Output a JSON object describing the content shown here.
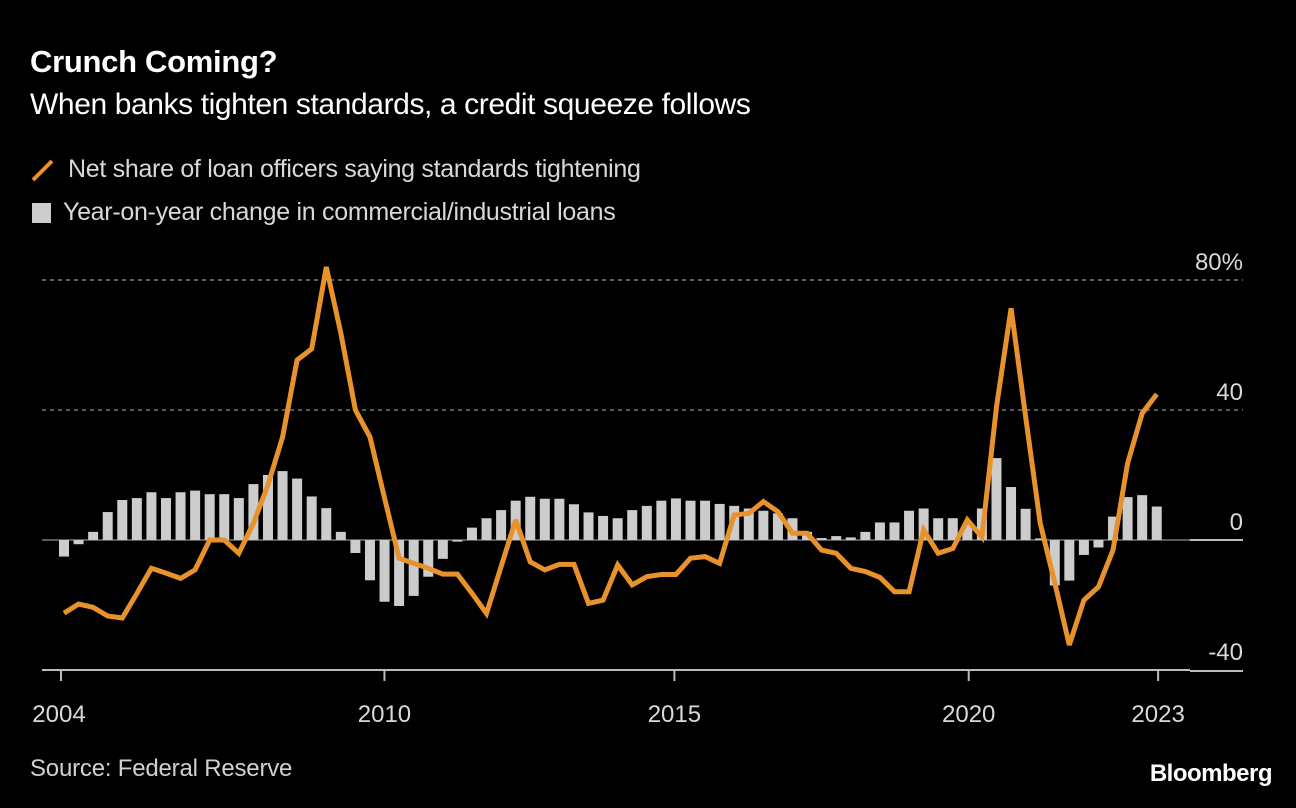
{
  "header": {
    "title": "Crunch Coming?",
    "subtitle": "When banks tighten standards, a credit squeeze follows"
  },
  "legend": [
    {
      "icon": "line-swatch-icon",
      "label": "Net share of loan officers saying standards tightening",
      "color": "#e8922b"
    },
    {
      "icon": "square-swatch-icon",
      "label": "Year-on-year change in commercial/industrial loans",
      "color": "#cccccc"
    }
  ],
  "footer": {
    "source": "Source: Federal Reserve",
    "brand": "Bloomberg"
  },
  "chart_data": {
    "type": "bar+line",
    "title": "Crunch Coming?",
    "subtitle": "When banks tighten standards, a credit squeeze follows",
    "xlabel": "",
    "ylabel": "%",
    "ylim": [
      -40,
      80
    ],
    "grid": true,
    "legend_position": "top-left",
    "frequency": "quarterly",
    "x_start": "2004 Q1",
    "x_end": "2022 Q4",
    "x_ticks": [
      {
        "label": "2004",
        "index": 0
      },
      {
        "label": "2010",
        "index": 22.2
      },
      {
        "label": "2015",
        "index": 42.1
      },
      {
        "label": "2020",
        "index": 62.3
      },
      {
        "label": "2023",
        "index": 75.3
      }
    ],
    "y_ticks": [
      {
        "value": 80,
        "label": "80%"
      },
      {
        "value": 40,
        "label": "40"
      },
      {
        "value": 0,
        "label": "0"
      },
      {
        "value": -40,
        "label": "-40"
      }
    ],
    "series": [
      {
        "name": "Net share of loan officers saying standards tightening",
        "kind": "line",
        "color": "#e8922b",
        "values": [
          -22.5,
          -19.7,
          -20.7,
          -23.4,
          -24,
          -16.5,
          -8.7,
          -10.2,
          -11.8,
          -9.2,
          0,
          0,
          -4.1,
          5.1,
          17,
          31.7,
          55.4,
          58.8,
          84,
          63.7,
          40,
          31.7,
          13,
          -5.6,
          -7.2,
          -8.7,
          -10.5,
          -10.5,
          -16.4,
          -22.6,
          -8.2,
          6.2,
          -6.7,
          -9.2,
          -7.5,
          -7.5,
          -19.5,
          -18.5,
          -7.7,
          -13.8,
          -11.3,
          -10.6,
          -10.6,
          -5.6,
          -5.1,
          -7.2,
          7.7,
          8.2,
          11.8,
          8.7,
          2.1,
          2.1,
          -3.1,
          -4.1,
          -8.7,
          -9.7,
          -11.5,
          -15.9,
          -15.9,
          3.1,
          -4.1,
          -2.6,
          6.2,
          0.9,
          41,
          71.3,
          38,
          5.2,
          -13.2,
          -32.3,
          -18.5,
          -14.4,
          -3.1,
          23.6,
          39,
          44.9
        ]
      },
      {
        "name": "Year-on-year change in commercial/industrial loans",
        "kind": "bar",
        "color": "#cccccc",
        "values": [
          -5.1,
          -1.3,
          2.5,
          8.6,
          12.3,
          12.9,
          14.7,
          12.9,
          14.7,
          15.2,
          14.1,
          14.1,
          12.9,
          17.2,
          20,
          21.2,
          18.9,
          13.4,
          9.8,
          2.5,
          -4,
          -12.4,
          -19,
          -20.3,
          -17.2,
          -11.3,
          -5.8,
          -0.5,
          3.8,
          6.7,
          9.2,
          12.1,
          13.3,
          12.7,
          12.7,
          11,
          8.5,
          7.4,
          6.7,
          9.2,
          10.5,
          12.1,
          12.8,
          12.1,
          12.1,
          11.1,
          10.5,
          9.7,
          9,
          8.2,
          6.7,
          2.5,
          0.6,
          1.2,
          0.8,
          2.5,
          5.4,
          5.4,
          9,
          9.7,
          6.7,
          6.7,
          5,
          9.7,
          25.2,
          16.3,
          9.6,
          0.5,
          -14,
          -12.5,
          -4.6,
          -2.3,
          7.2,
          13.2,
          13.8,
          10.3
        ]
      }
    ]
  }
}
